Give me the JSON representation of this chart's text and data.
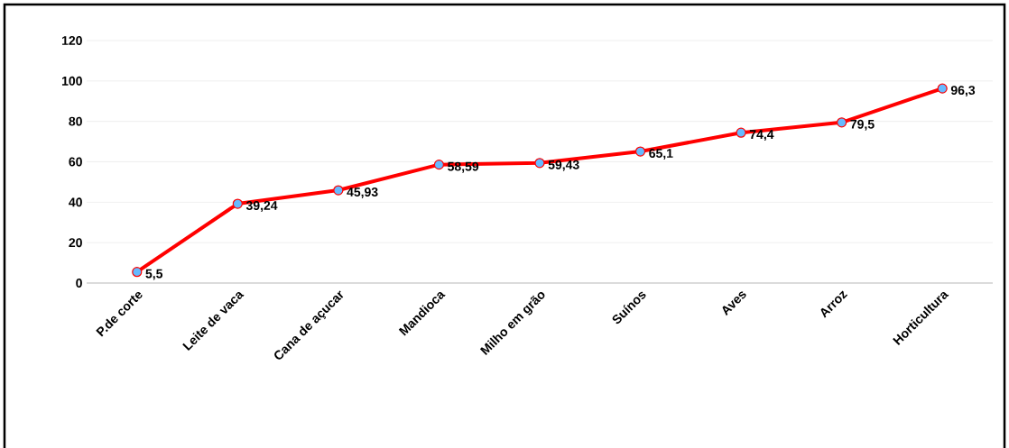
{
  "chart_data": {
    "type": "line",
    "categories": [
      "P.de corte",
      "Leite de vaca",
      "Cana de açucar",
      "Mandioca",
      "Milho em grão",
      "Suínos",
      "Aves",
      "Arroz",
      "Horticultura"
    ],
    "series": [
      {
        "color": "#ff0000",
        "values": [
          5.5,
          39.24,
          45.93,
          58.59,
          59.43,
          65.1,
          74.4,
          79.5,
          96.3
        ],
        "value_labels": [
          "5,5",
          "39,24",
          "45,93",
          "58,59",
          "59,43",
          "65,1",
          "74,4",
          "79,5",
          "96,3"
        ]
      }
    ],
    "ylim": [
      0,
      120
    ],
    "yticks": [
      0,
      20,
      40,
      60,
      80,
      100,
      120
    ],
    "grid": "y",
    "marker": "circle",
    "line_style": "solid"
  }
}
